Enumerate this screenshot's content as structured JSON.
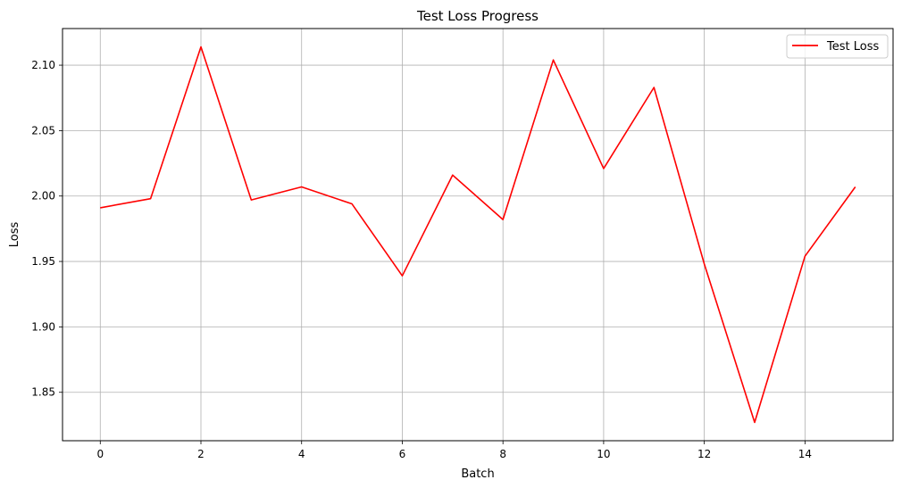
{
  "chart_data": {
    "type": "line",
    "title": "Test Loss Progress",
    "xlabel": "Batch",
    "ylabel": "Loss",
    "xlim": [
      -0.75,
      15.75
    ],
    "ylim": [
      1.813,
      2.128
    ],
    "xticks": [
      0,
      2,
      4,
      6,
      8,
      10,
      12,
      14
    ],
    "xtick_labels": [
      "0",
      "2",
      "4",
      "6",
      "8",
      "10",
      "12",
      "14"
    ],
    "yticks": [
      1.85,
      1.9,
      1.95,
      2.0,
      2.05,
      2.1
    ],
    "ytick_labels": [
      "1.85",
      "1.90",
      "1.95",
      "2.00",
      "2.05",
      "2.10"
    ],
    "grid": true,
    "legend_position": "top-right",
    "series": [
      {
        "name": "Test Loss",
        "color": "#ff0000",
        "x": [
          0,
          1,
          2,
          3,
          4,
          5,
          6,
          7,
          8,
          9,
          10,
          11,
          12,
          13,
          14,
          15
        ],
        "y": [
          1.991,
          1.998,
          2.114,
          1.997,
          2.007,
          1.994,
          1.939,
          2.016,
          1.982,
          2.104,
          2.021,
          2.083,
          1.948,
          1.827,
          1.954,
          2.007
        ]
      }
    ]
  }
}
